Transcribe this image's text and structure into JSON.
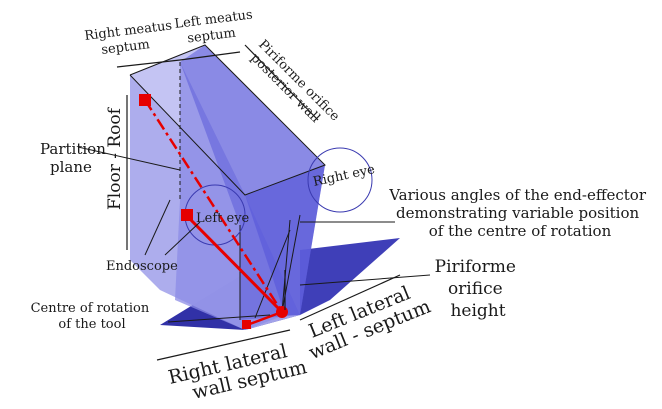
{
  "labels": {
    "right_meatus_septum": [
      "Right meatus",
      "septum"
    ],
    "left_meatus_septum": [
      "Left meatus",
      "septum"
    ],
    "piriforme_posterior_wall": [
      "Piriforme orifice",
      "posterior wall"
    ],
    "partition_plane": [
      "Partition",
      "plane"
    ],
    "floor_roof": "Floor - Roof",
    "left_eye": "Left eye",
    "right_eye": "Right eye",
    "endoscope": "Endoscope",
    "end_effector_note": [
      "Various angles of the end-effector",
      "demonstrating variable position",
      "of the centre of rotation"
    ],
    "piriforme_height": [
      "Piriforme",
      "orifice",
      "height"
    ],
    "centre_of_rotation": [
      "Centre of rotation",
      "of the tool"
    ],
    "right_lateral": [
      "Right lateral",
      "wall septum"
    ],
    "left_lateral": [
      "Left lateral",
      "wall - septum"
    ]
  },
  "colors": {
    "box_light": "#b3b3ef",
    "box_mid": "#8a8ae6",
    "box_dark": "#5050d8",
    "base_dark": "#1f1fa0",
    "tool_red": "#e60000",
    "eye_circle": "#3a3ab0"
  }
}
